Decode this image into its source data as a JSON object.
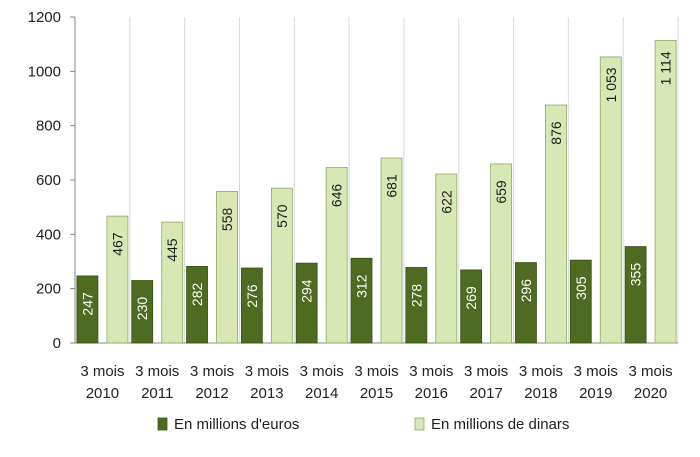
{
  "chart_data": {
    "type": "bar",
    "categories": [
      [
        "3 mois",
        "2010"
      ],
      [
        "3 mois",
        "2011"
      ],
      [
        "3 mois",
        "2012"
      ],
      [
        "3 mois",
        "2013"
      ],
      [
        "3 mois",
        "2014"
      ],
      [
        "3 mois",
        "2015"
      ],
      [
        "3 mois",
        "2016"
      ],
      [
        "3 mois",
        "2017"
      ],
      [
        "3 mois",
        "2018"
      ],
      [
        "3 mois",
        "2019"
      ],
      [
        "3 mois",
        "2020"
      ]
    ],
    "series": [
      {
        "name": "En millions d'euros",
        "color": "#4e6b21",
        "values": [
          247,
          230,
          282,
          276,
          294,
          312,
          278,
          269,
          296,
          305,
          355
        ],
        "labels": [
          "247",
          "230",
          "282",
          "276",
          "294",
          "312",
          "278",
          "269",
          "296",
          "305",
          "355"
        ]
      },
      {
        "name": "En millions de dinars",
        "color": "#d7e8b4",
        "values": [
          467,
          445,
          558,
          570,
          646,
          681,
          622,
          659,
          876,
          1053,
          1114
        ],
        "labels": [
          "467",
          "445",
          "558",
          "570",
          "646",
          "681",
          "622",
          "659",
          "876",
          "1 053",
          "1 114"
        ]
      }
    ],
    "ylim": [
      0,
      1200
    ],
    "yticks": [
      0,
      200,
      400,
      600,
      800,
      1000,
      1200
    ],
    "grid": "vertical",
    "legend_position": "bottom"
  }
}
